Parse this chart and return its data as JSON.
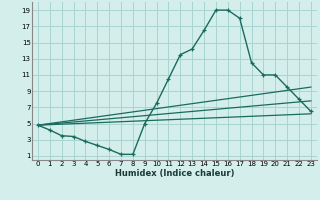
{
  "xlabel": "Humidex (Indice chaleur)",
  "bg_color": "#d4eeeb",
  "grid_color": "#a8d4d0",
  "line_color": "#1a6b5e",
  "xlim": [
    -0.5,
    23.5
  ],
  "ylim": [
    0.5,
    20.0
  ],
  "xticks": [
    0,
    1,
    2,
    3,
    4,
    5,
    6,
    7,
    8,
    9,
    10,
    11,
    12,
    13,
    14,
    15,
    16,
    17,
    18,
    19,
    20,
    21,
    22,
    23
  ],
  "yticks": [
    1,
    3,
    5,
    7,
    9,
    11,
    13,
    15,
    17,
    19
  ],
  "main_line_x": [
    0,
    1,
    2,
    3,
    4,
    5,
    6,
    7,
    8,
    9,
    10,
    11,
    12,
    13,
    14,
    15,
    16,
    17,
    18,
    19,
    20,
    21,
    22,
    23
  ],
  "main_line_y": [
    4.8,
    4.2,
    3.5,
    3.4,
    2.8,
    2.3,
    1.8,
    1.2,
    1.2,
    5.0,
    7.5,
    10.5,
    13.5,
    14.2,
    16.5,
    19.0,
    19.0,
    18.0,
    12.5,
    11.0,
    11.0,
    9.5,
    8.0,
    6.5
  ],
  "line2_x": [
    0,
    23
  ],
  "line2_y": [
    4.8,
    9.5
  ],
  "line3_x": [
    0,
    23
  ],
  "line3_y": [
    4.8,
    7.8
  ],
  "line4_x": [
    0,
    23
  ],
  "line4_y": [
    4.8,
    6.2
  ]
}
